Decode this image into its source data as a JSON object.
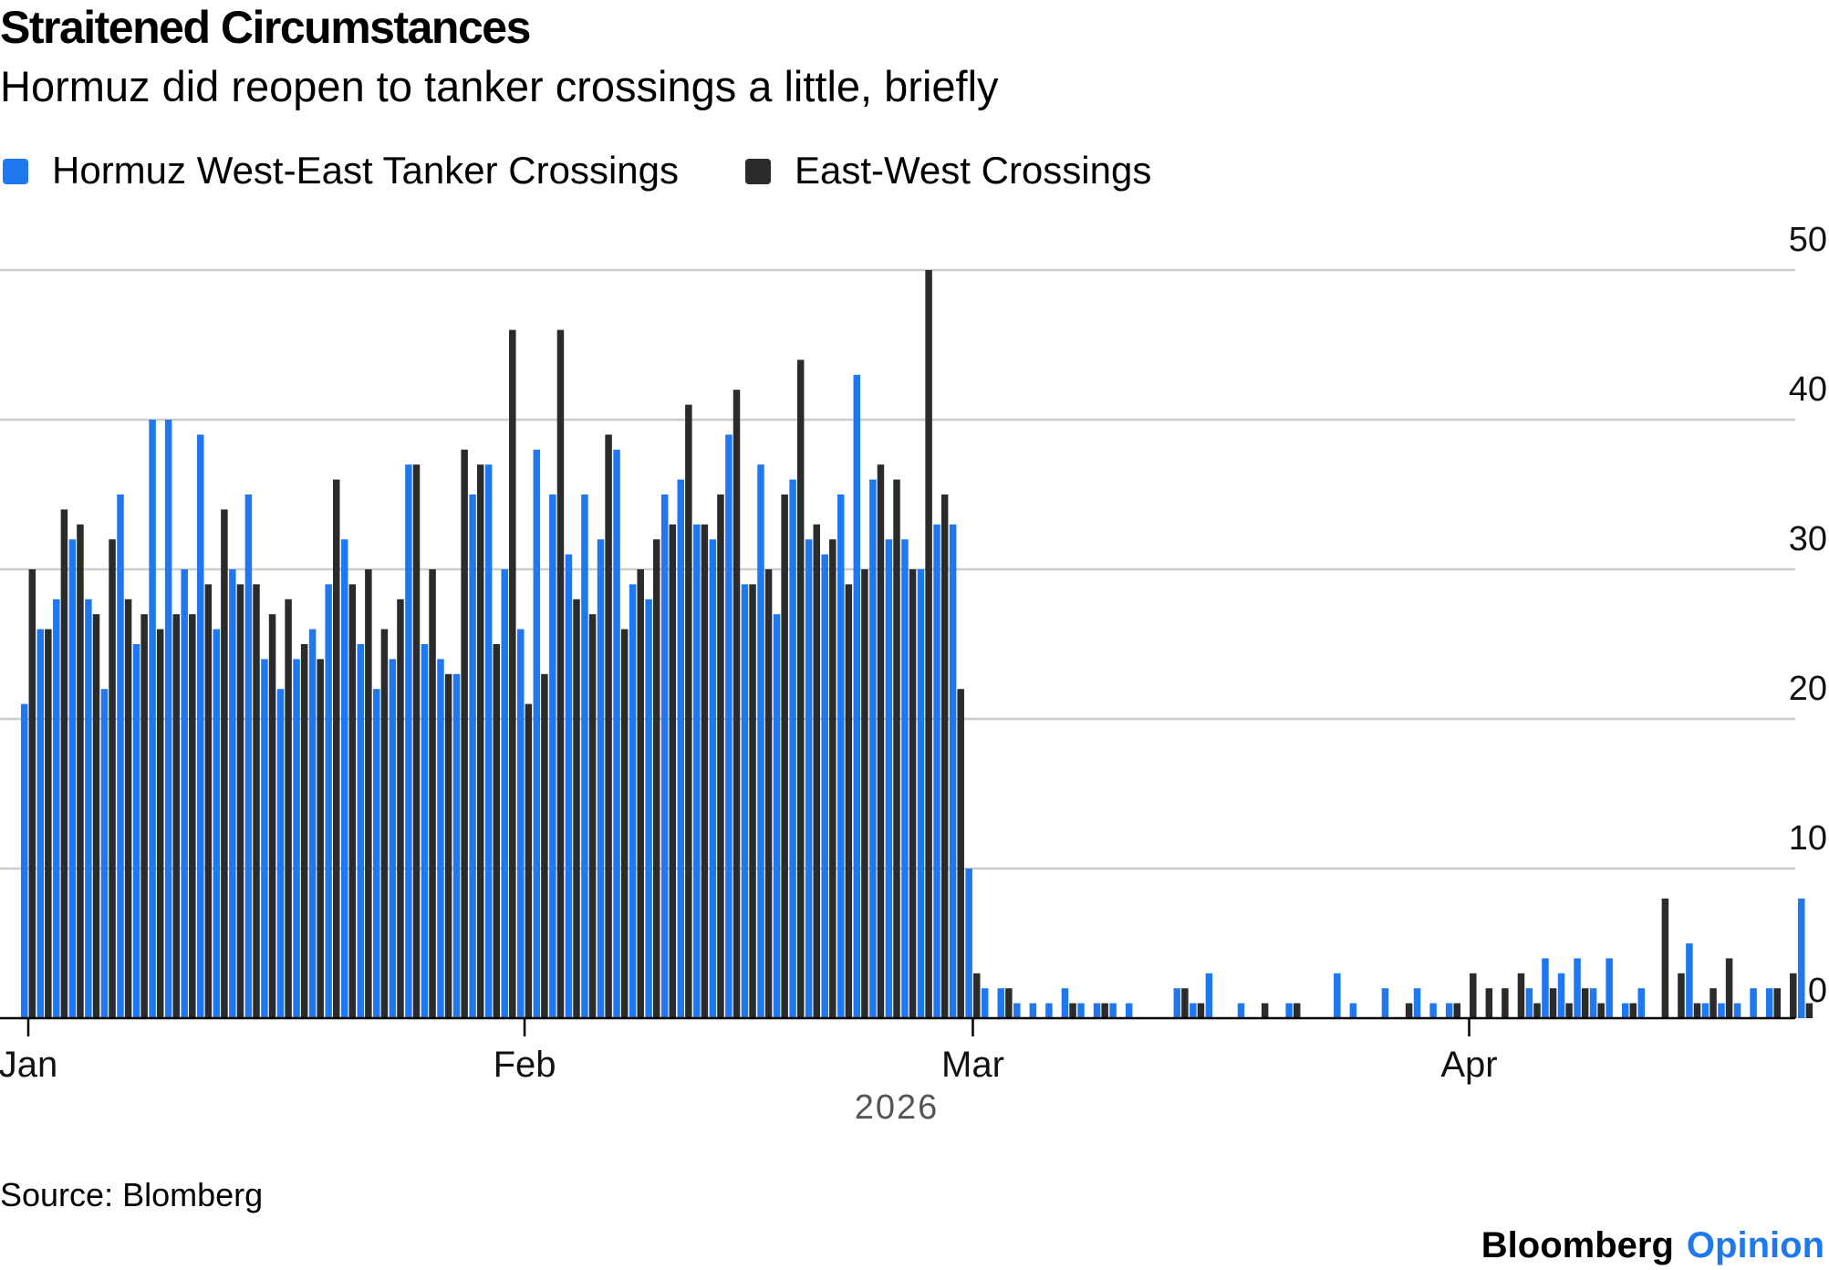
{
  "chart_data": {
    "type": "bar",
    "title": "Straitened Circumstances",
    "subtitle": "Hormuz did reopen to tanker crossings a little, briefly",
    "x_tick_labels": [
      "Jan",
      "Feb",
      "Mar",
      "Apr"
    ],
    "x_tick_day_index": [
      0,
      31,
      59,
      90
    ],
    "x_axis_year_label": "2026",
    "ylim": [
      0,
      50
    ],
    "yticks": [
      0,
      10,
      20,
      30,
      40,
      50
    ],
    "grid": true,
    "legend_position": "top-left",
    "source": "Source: Blomberg",
    "colors": {
      "west_east": "#1f78f0",
      "east_west": "#2b2b2b",
      "grid": "#cccccc",
      "axis": "#000000"
    },
    "series": [
      {
        "name": "Hormuz West-East Tanker Crossings",
        "values": [
          21,
          26,
          28,
          32,
          28,
          22,
          35,
          25,
          40,
          40,
          30,
          39,
          26,
          30,
          35,
          24,
          22,
          24,
          26,
          29,
          32,
          25,
          22,
          24,
          37,
          25,
          24,
          23,
          35,
          37,
          30,
          26,
          38,
          35,
          31,
          35,
          32,
          38,
          29,
          28,
          35,
          36,
          33,
          32,
          39,
          29,
          37,
          27,
          36,
          32,
          31,
          35,
          43,
          36,
          32,
          32,
          30,
          33,
          33,
          10,
          2,
          2,
          1,
          1,
          1,
          2,
          1,
          1,
          1,
          1,
          0,
          0,
          2,
          1,
          3,
          0,
          1,
          0,
          0,
          1,
          0,
          0,
          3,
          1,
          0,
          2,
          0,
          2,
          1,
          1,
          0,
          0,
          0,
          0,
          2,
          4,
          3,
          4,
          2,
          4,
          1,
          2,
          0,
          0,
          5,
          1,
          1,
          1,
          2,
          2,
          0,
          8,
          0
        ]
      },
      {
        "name": "East-West Crossings",
        "values": [
          30,
          26,
          34,
          33,
          27,
          32,
          28,
          27,
          26,
          27,
          27,
          29,
          34,
          29,
          29,
          27,
          28,
          25,
          24,
          36,
          29,
          30,
          26,
          28,
          37,
          30,
          23,
          38,
          37,
          25,
          46,
          21,
          23,
          46,
          28,
          27,
          39,
          26,
          30,
          32,
          33,
          41,
          33,
          35,
          42,
          29,
          30,
          35,
          44,
          33,
          32,
          29,
          30,
          37,
          36,
          30,
          50,
          35,
          22,
          3,
          0,
          2,
          0,
          0,
          0,
          1,
          0,
          1,
          0,
          0,
          0,
          0,
          2,
          1,
          0,
          0,
          0,
          1,
          0,
          1,
          0,
          0,
          0,
          0,
          0,
          0,
          1,
          0,
          0,
          1,
          3,
          2,
          2,
          3,
          1,
          2,
          1,
          2,
          1,
          0,
          1,
          0,
          8,
          3,
          1,
          2,
          4,
          0,
          0,
          2,
          3,
          1
        ]
      }
    ]
  },
  "branding": {
    "name": "Bloomberg",
    "suffix": "Opinion",
    "suffix_color": "#1f78f0"
  },
  "ytick_text": [
    "0",
    "10",
    "20",
    "30",
    "40",
    "50"
  ]
}
